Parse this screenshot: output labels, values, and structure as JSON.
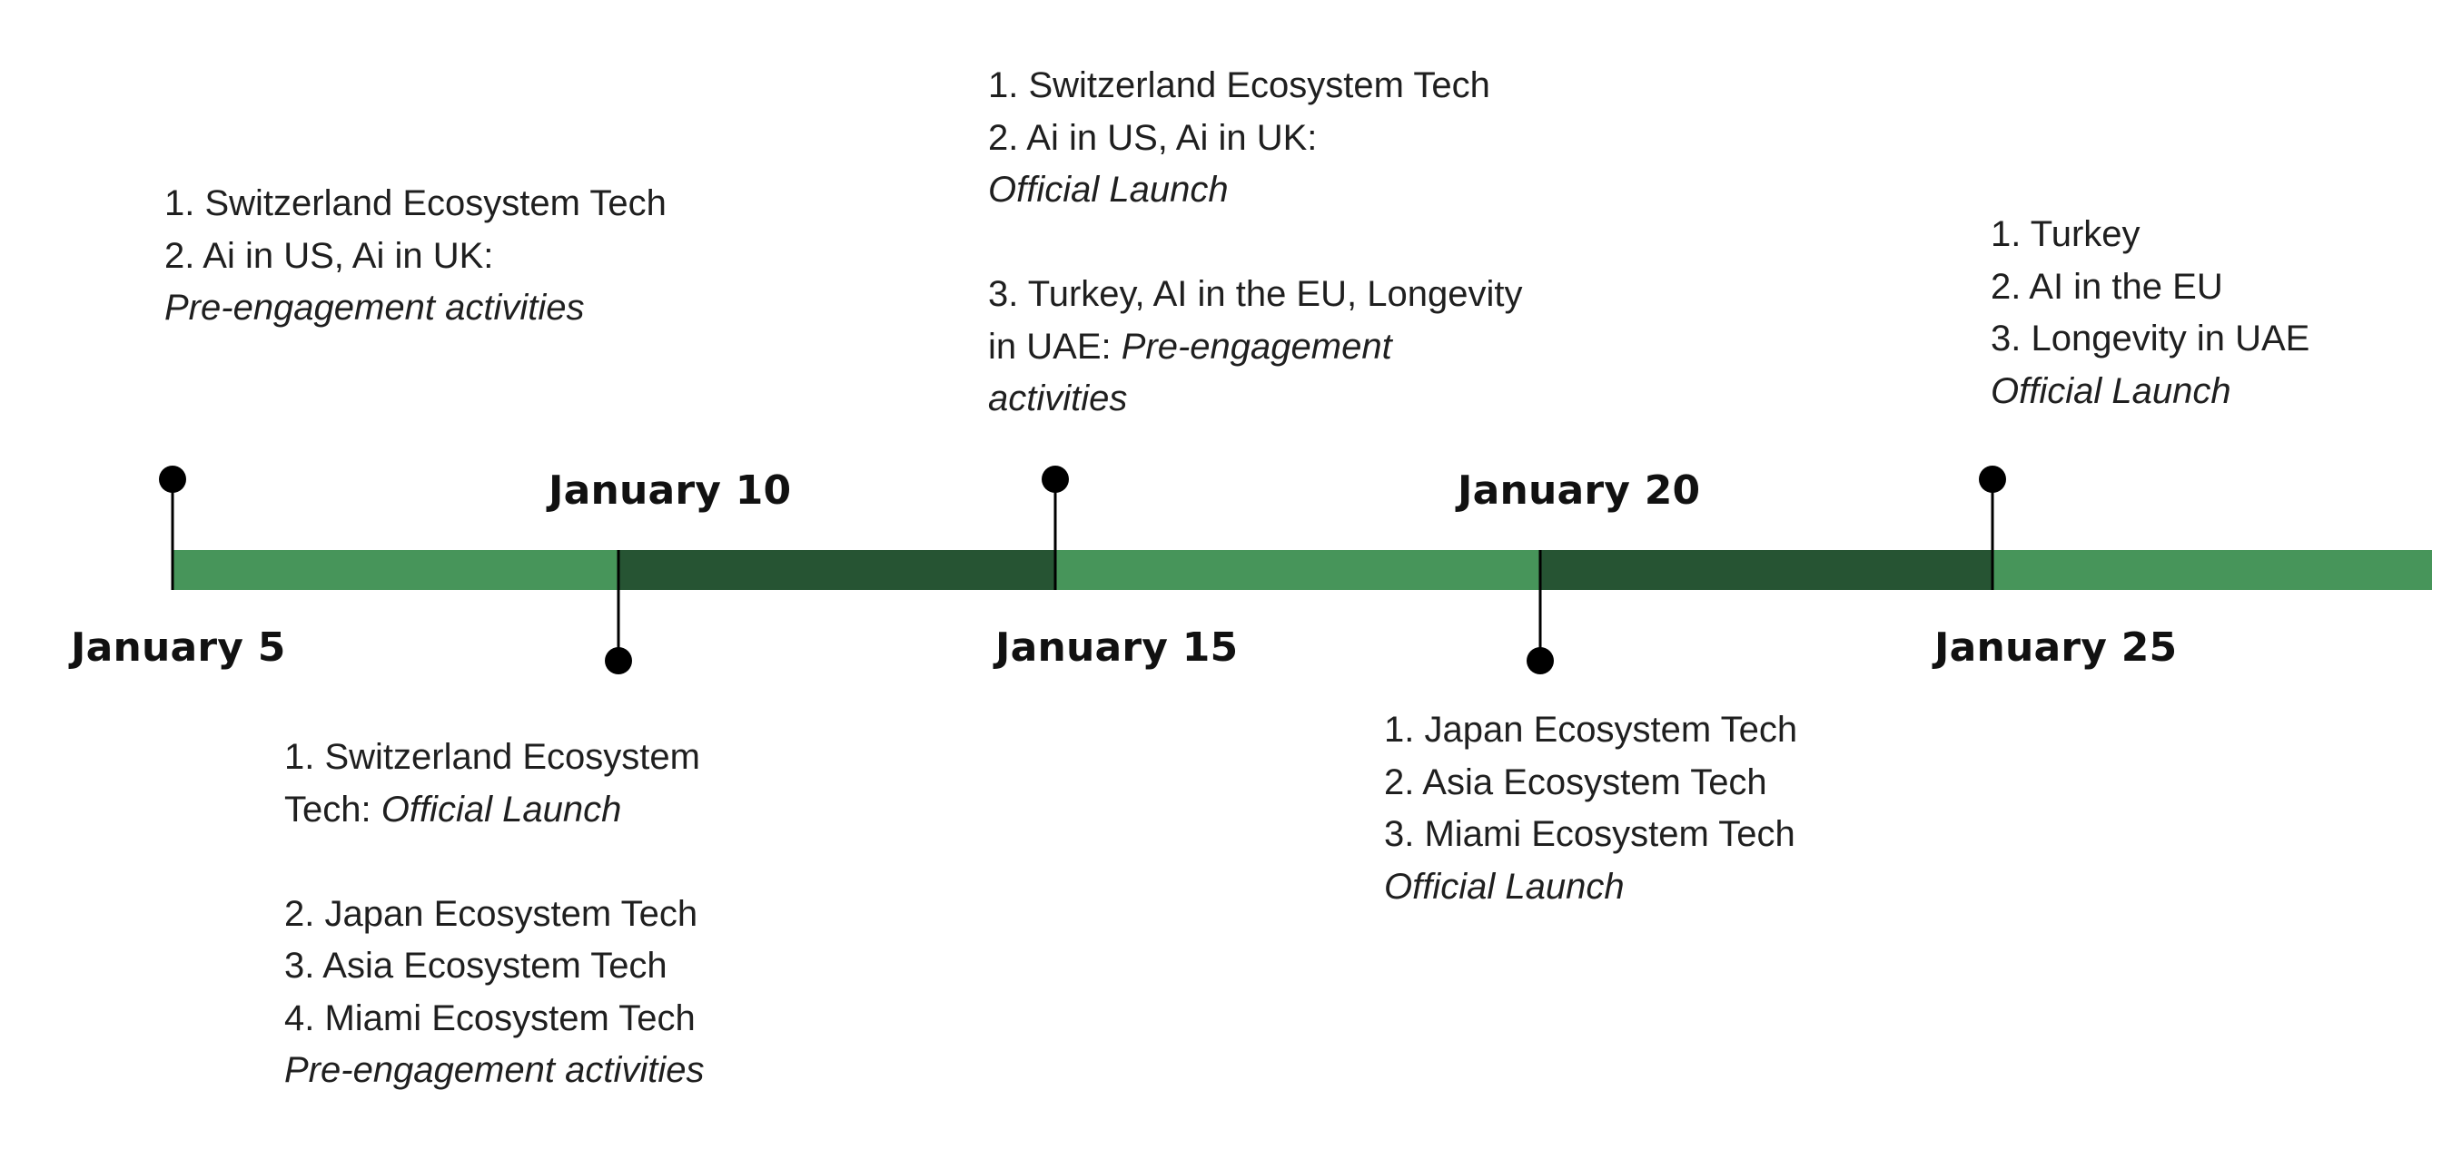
{
  "colors": {
    "bar_light": "#47955a",
    "bar_dark": "#265433",
    "marker": "#000000"
  },
  "dates": {
    "jan5": "January 5",
    "jan10": "January 10",
    "jan15": "January 15",
    "jan20": "January 20",
    "jan25": "January 25"
  },
  "milestones": {
    "jan5": {
      "line1": "1. Switzerland Ecosystem Tech",
      "line2": "2. Ai in US, Ai in UK:",
      "line3": "Pre-engagement activities"
    },
    "jan10": {
      "line1": "1. Switzerland Ecosystem",
      "line2_text": "Tech: ",
      "line2_italic": "Official Launch",
      "line3": "2. Japan Ecosystem Tech",
      "line4": "3. Asia Ecosystem Tech",
      "line5": "4. Miami Ecosystem Tech",
      "line6": "Pre-engagement activities"
    },
    "jan15": {
      "line1": "1. Switzerland Ecosystem Tech",
      "line2": "2. Ai in US, Ai in UK:",
      "line3": "Official Launch",
      "line4": "3. Turkey, AI in the EU, Longevity",
      "line5_text": "in UAE: ",
      "line5_italic": "Pre-engagement",
      "line6": "activities"
    },
    "jan20": {
      "line1": "1. Japan Ecosystem Tech",
      "line2": "2. Asia Ecosystem Tech",
      "line3": "3. Miami Ecosystem Tech",
      "line4": "Official Launch"
    },
    "jan25": {
      "line1": "1. Turkey",
      "line2": "2. AI in the EU",
      "line3": "3. Longevity in UAE",
      "line4": "Official Launch"
    }
  }
}
